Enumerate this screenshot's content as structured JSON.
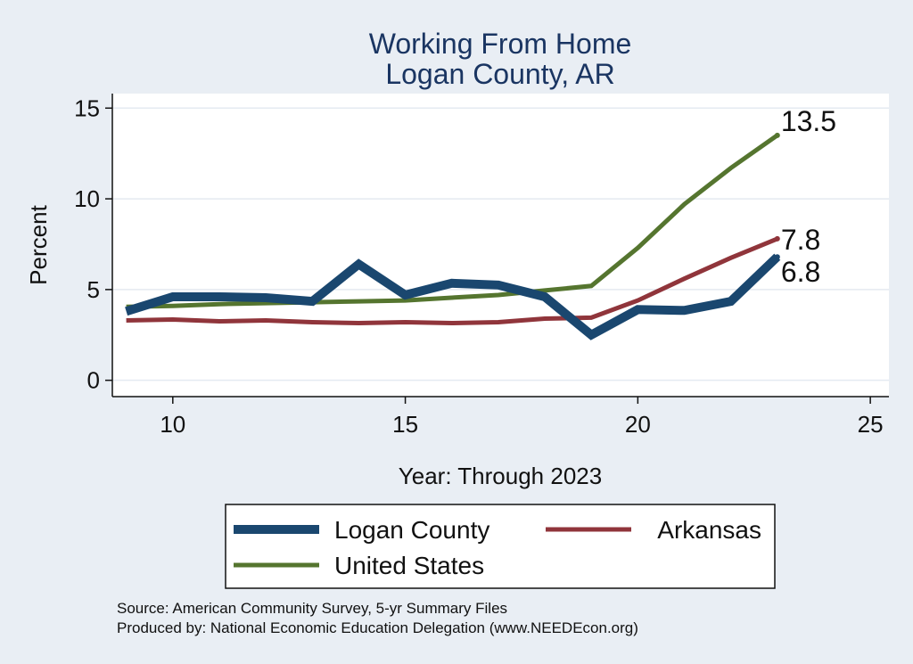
{
  "chart_data": {
    "type": "line",
    "title": "Working From Home",
    "subtitle": "Logan County, AR",
    "xlabel": "Year: Through 2023",
    "ylabel": "Percent",
    "xlim": [
      8.7,
      25.4
    ],
    "ylim": [
      -0.9,
      15.8
    ],
    "xticks": [
      10,
      15,
      20,
      25
    ],
    "yticks": [
      0,
      5,
      10,
      15
    ],
    "grid": true,
    "legend_position": "bottom",
    "x": [
      9,
      10,
      11,
      12,
      13,
      14,
      15,
      16,
      17,
      18,
      19,
      20,
      21,
      22,
      23
    ],
    "series": [
      {
        "name": "Logan County",
        "color": "#1a476f",
        "values": [
          3.8,
          4.6,
          4.6,
          4.55,
          4.35,
          6.4,
          4.7,
          5.35,
          5.25,
          4.6,
          2.5,
          3.9,
          3.85,
          4.35,
          6.8
        ],
        "end_label": "6.8"
      },
      {
        "name": "Arkansas",
        "color": "#90353b",
        "values": [
          3.3,
          3.35,
          3.25,
          3.3,
          3.2,
          3.15,
          3.2,
          3.15,
          3.2,
          3.4,
          3.45,
          4.4,
          5.6,
          6.75,
          7.8
        ],
        "end_label": "7.8"
      },
      {
        "name": "United States",
        "color": "#55752f",
        "values": [
          4.05,
          4.1,
          4.2,
          4.25,
          4.3,
          4.35,
          4.4,
          4.55,
          4.7,
          4.95,
          5.2,
          7.3,
          9.7,
          11.7,
          13.5
        ],
        "end_label": "13.5"
      }
    ],
    "source_lines": [
      "Source: American Community Survey, 5-yr Summary Files",
      "Produced by: National Economic Education Delegation (www.NEEDEcon.org)"
    ]
  }
}
